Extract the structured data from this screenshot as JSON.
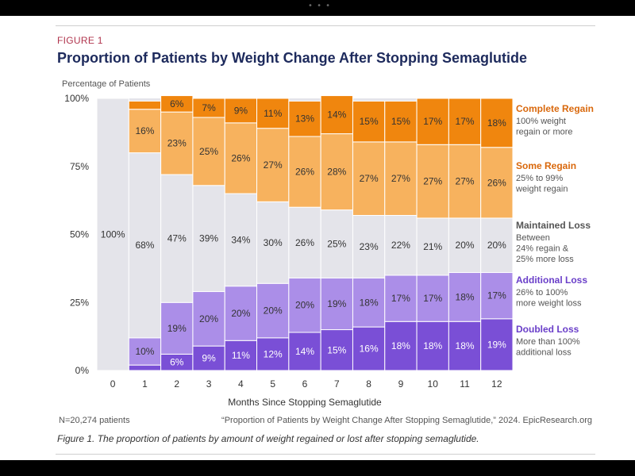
{
  "figure_label": "FIGURE 1",
  "title": "Proportion of Patients by Weight Change After Stopping Semaglutide",
  "footnote_n": "N=20,274 patients",
  "source": "“Proportion of Patients by Weight Change After Stopping Semaglutide,” 2024. EpicResearch.org",
  "caption": "Figure 1. The proportion of patients by amount of weight regained or lost after stopping semaglutide.",
  "colors": {
    "doubled_loss": "#7a4fd6",
    "additional_loss": "#ab8ee8",
    "maintained_loss": "#e4e4ea",
    "some_regain": "#f7b25e",
    "complete_regain": "#f0860e",
    "legend_purple": "#6a3fc9",
    "legend_orange": "#d9680c",
    "legend_gray": "#555555"
  },
  "chart_data": {
    "type": "bar",
    "stacked": true,
    "ylabel": "Percentage of Patients",
    "xlabel": "Months Since Stopping Semaglutide",
    "ylim": [
      0,
      100
    ],
    "yticks": [
      "0%",
      "25%",
      "50%",
      "75%",
      "100%"
    ],
    "categories": [
      "0",
      "1",
      "2",
      "3",
      "4",
      "5",
      "6",
      "7",
      "8",
      "9",
      "10",
      "11",
      "12"
    ],
    "series": [
      {
        "name": "Doubled Loss",
        "desc": [
          "More than 100%",
          "additional loss"
        ],
        "values": [
          0,
          2,
          6,
          9,
          11,
          12,
          14,
          15,
          16,
          18,
          18,
          18,
          19
        ],
        "labels": [
          "",
          "",
          "6%",
          "9%",
          "11%",
          "12%",
          "14%",
          "15%",
          "16%",
          "18%",
          "18%",
          "18%",
          "19%"
        ]
      },
      {
        "name": "Additional Loss",
        "desc": [
          "26% to 100%",
          "more weight loss"
        ],
        "values": [
          0,
          10,
          19,
          20,
          20,
          20,
          20,
          19,
          18,
          17,
          17,
          18,
          17
        ],
        "labels": [
          "",
          "10%",
          "19%",
          "20%",
          "20%",
          "20%",
          "20%",
          "19%",
          "18%",
          "17%",
          "17%",
          "18%",
          "17%"
        ]
      },
      {
        "name": "Maintained Loss",
        "desc": [
          "Between",
          "24% regain &",
          "25% more loss"
        ],
        "values": [
          100,
          68,
          47,
          39,
          34,
          30,
          26,
          25,
          23,
          22,
          21,
          20,
          20
        ],
        "labels": [
          "100%",
          "68%",
          "47%",
          "39%",
          "34%",
          "30%",
          "26%",
          "25%",
          "23%",
          "22%",
          "21%",
          "20%",
          "20%"
        ]
      },
      {
        "name": "Some Regain",
        "desc": [
          "25% to 99%",
          "weight regain"
        ],
        "values": [
          0,
          16,
          23,
          25,
          26,
          27,
          26,
          28,
          27,
          27,
          27,
          27,
          26
        ],
        "labels": [
          "",
          "16%",
          "23%",
          "25%",
          "26%",
          "27%",
          "26%",
          "28%",
          "27%",
          "27%",
          "27%",
          "27%",
          "26%"
        ]
      },
      {
        "name": "Complete Regain",
        "desc": [
          "100% weight",
          "regain or more"
        ],
        "values": [
          0,
          3,
          6,
          7,
          9,
          11,
          13,
          14,
          15,
          15,
          17,
          17,
          18
        ],
        "labels": [
          "",
          "",
          "6%",
          "7%",
          "9%",
          "11%",
          "13%",
          "14%",
          "15%",
          "15%",
          "17%",
          "17%",
          "18%"
        ]
      }
    ],
    "legend_position": "right"
  }
}
